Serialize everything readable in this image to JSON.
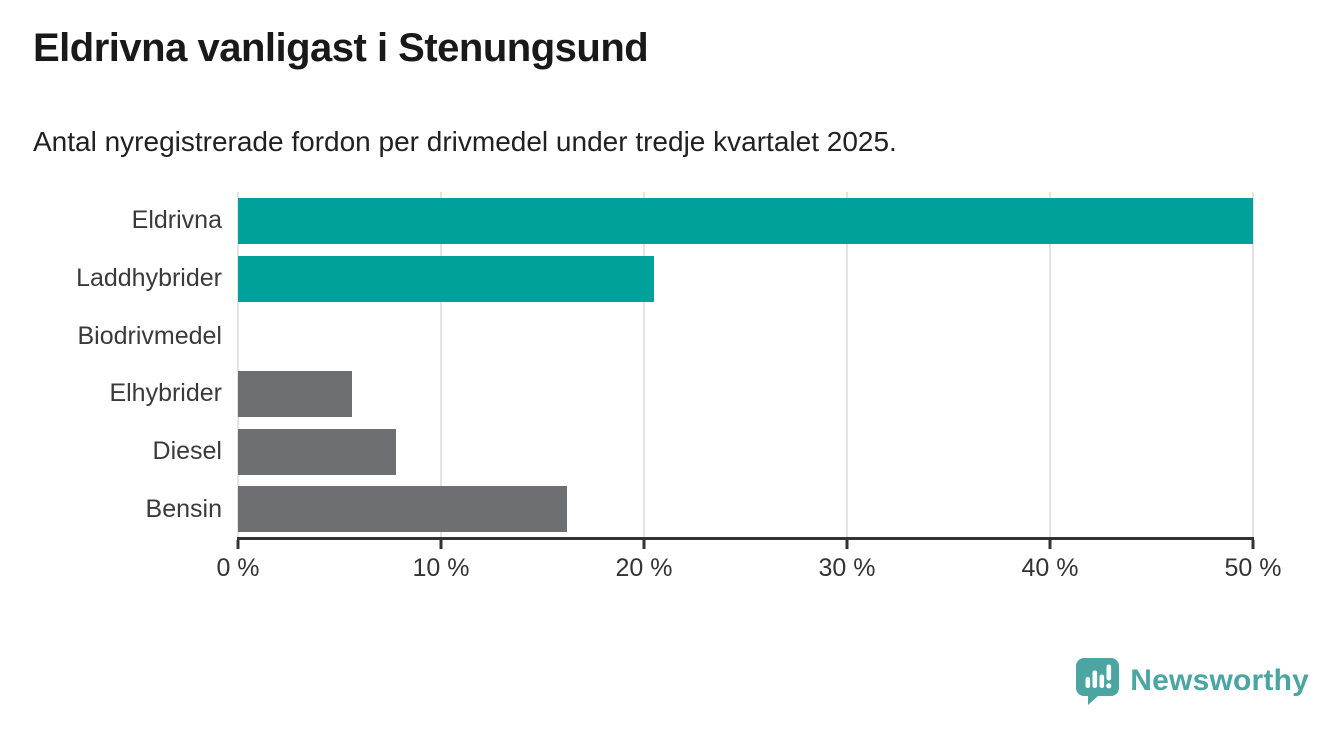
{
  "header": {
    "title": "Eldrivna vanligast i Stenungsund",
    "subtitle": "Antal nyregistrerade fordon per drivmedel under tredje kvartalet 2025."
  },
  "chart_data": {
    "type": "bar",
    "orientation": "horizontal",
    "title": "Eldrivna vanligast i Stenungsund",
    "subtitle": "Antal nyregistrerade fordon per drivmedel under tredje kvartalet 2025.",
    "categories": [
      "Eldrivna",
      "Laddhybrider",
      "Biodrivmedel",
      "Elhybrider",
      "Diesel",
      "Bensin"
    ],
    "values": [
      50.0,
      20.5,
      0,
      5.6,
      7.8,
      16.2
    ],
    "unit": "%",
    "xlabel": "",
    "ylabel": "",
    "xlim": [
      0,
      50
    ],
    "x_ticks": [
      {
        "value": 0,
        "label": "0 %"
      },
      {
        "value": 10,
        "label": "10 %"
      },
      {
        "value": 20,
        "label": "20 %"
      },
      {
        "value": 30,
        "label": "30 %"
      },
      {
        "value": 40,
        "label": "40 %"
      },
      {
        "value": 50,
        "label": "50 %"
      }
    ],
    "grid": "vertical",
    "legend": "none",
    "bar_colors": [
      "#00a19a",
      "#00a19a",
      "#6e6f73",
      "#6e6f73",
      "#6e6f73",
      "#6e6f73"
    ],
    "colors": {
      "highlight": "#00a19a",
      "default": "#6e6f73",
      "gridline": "#e4e4e4",
      "axis_line": "#333333",
      "category_label": "#3a3a3a",
      "tick_label": "#333333"
    }
  },
  "footer": {
    "brand": "Newsworthy",
    "brand_color": "#4ba5a3"
  }
}
